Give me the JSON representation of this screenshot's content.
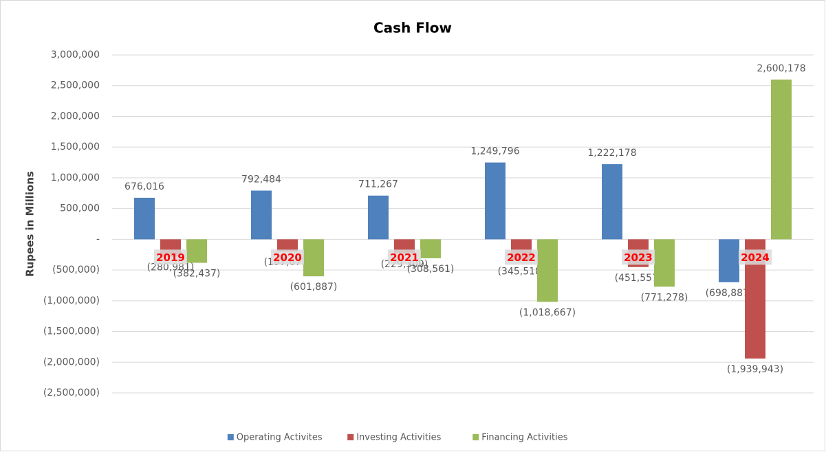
{
  "chart_data": {
    "type": "bar",
    "title": "Cash Flow",
    "y_label": "Rupees in Millions",
    "categories": [
      "2019",
      "2020",
      "2021",
      "2022",
      "2023",
      "2024"
    ],
    "series": [
      {
        "name": "Operating Activites",
        "color": "#4f81bd",
        "values": [
          676016,
          792484,
          711267,
          1249796,
          1222178,
          -698887
        ],
        "value_labels": [
          "676,016",
          "792,484",
          "711,267",
          "1,249,796",
          "1,222,178",
          "(698,887)"
        ]
      },
      {
        "name": "Investing Activities",
        "color": "#c0504d",
        "values": [
          -280981,
          -197677,
          -229309,
          -345518,
          -451557,
          -1939943
        ],
        "value_labels": [
          "(280,981)",
          "(197,677)",
          "(229,309)",
          "(345,518)",
          "(451,557)",
          "(1,939,943)"
        ]
      },
      {
        "name": "Financing Activities",
        "color": "#9bbb59",
        "values": [
          -382437,
          -601887,
          -308561,
          -1018667,
          -771278,
          2600178
        ],
        "value_labels": [
          "(382,437)",
          "(601,887)",
          "(308,561)",
          "(1,018,667)",
          "(771,278)",
          "2,600,178"
        ]
      }
    ],
    "ylim": [
      -2500000,
      3000000
    ],
    "yticks": [
      {
        "value": -2500000,
        "label": "(2,500,000)"
      },
      {
        "value": -2000000,
        "label": "(2,000,000)"
      },
      {
        "value": -1500000,
        "label": "(1,500,000)"
      },
      {
        "value": -1000000,
        "label": "(1,000,000)"
      },
      {
        "value": -500000,
        "label": "(500,000)"
      },
      {
        "value": 0,
        "label": "-"
      },
      {
        "value": 500000,
        "label": "500,000"
      },
      {
        "value": 1000000,
        "label": "1,000,000"
      },
      {
        "value": 1500000,
        "label": "1,500,000"
      },
      {
        "value": 2000000,
        "label": "2,000,000"
      },
      {
        "value": 2500000,
        "label": "2,500,000"
      },
      {
        "value": 3000000,
        "label": "3,000,000"
      }
    ],
    "grid": true,
    "legend": "bottom"
  }
}
